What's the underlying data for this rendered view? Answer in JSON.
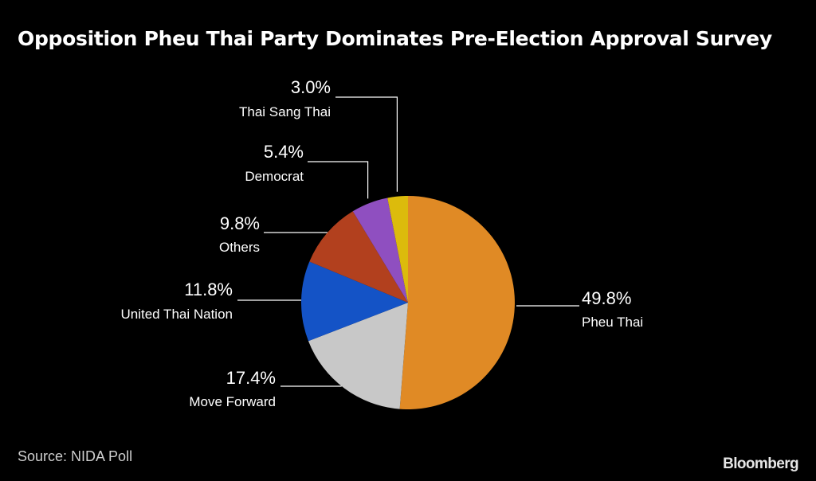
{
  "title": "Opposition Pheu Thai Party Dominates Pre-Election Approval Survey",
  "source": "Source: NIDA Poll",
  "brand": "Bloomberg",
  "colors": {
    "background": "#000000",
    "text": "#ffffff",
    "leader_line": "#ffffff"
  },
  "chart_data": {
    "type": "pie",
    "start_angle_deg": 0,
    "direction": "clockwise",
    "slices": [
      {
        "label": "Pheu Thai",
        "value": 49.8,
        "display": "49.8%",
        "color": "#e08a25",
        "label_side": "right"
      },
      {
        "label": "Move Forward",
        "value": 17.4,
        "display": "17.4%",
        "color": "#c8c8c8",
        "label_side": "left"
      },
      {
        "label": "United Thai Nation",
        "value": 11.8,
        "display": "11.8%",
        "color": "#1453c6",
        "label_side": "left"
      },
      {
        "label": "Others",
        "value": 9.8,
        "display": "9.8%",
        "color": "#b2401e",
        "label_side": "left"
      },
      {
        "label": "Democrat",
        "value": 5.4,
        "display": "5.4%",
        "color": "#8f4fc0",
        "label_side": "left"
      },
      {
        "label": "Thai Sang Thai",
        "value": 3.0,
        "display": "3.0%",
        "color": "#dcbb0c",
        "label_side": "left"
      }
    ]
  }
}
